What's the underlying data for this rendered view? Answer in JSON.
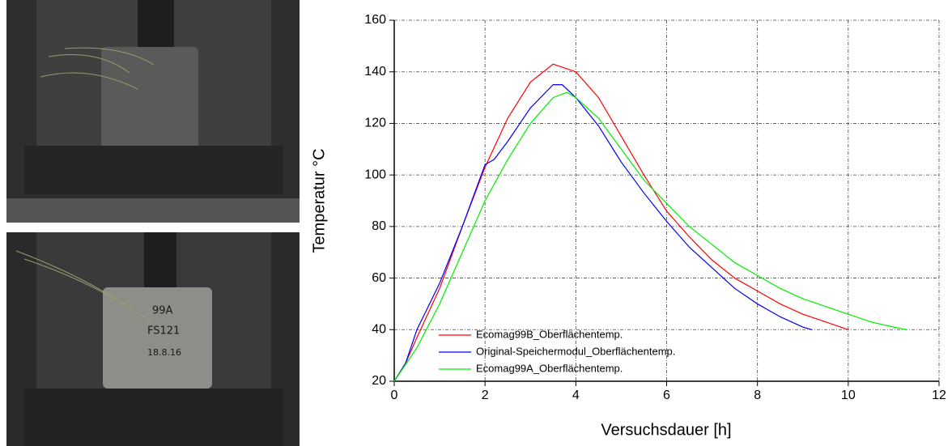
{
  "photo_labels": [
    "99A",
    "FS121",
    "18.8.16"
  ],
  "chart_data": {
    "type": "line",
    "x_label": "Versuchsdauer [h]",
    "y_label": "Temperatur °C",
    "xlim": [
      0,
      12
    ],
    "xticks": [
      0,
      2,
      4,
      6,
      8,
      10,
      12
    ],
    "ylim": [
      20,
      160
    ],
    "yticks": [
      20,
      40,
      60,
      80,
      100,
      120,
      140,
      160
    ],
    "grid": true,
    "legend": "lower left",
    "series": [
      {
        "name": "Ecomag99B_Oberflächentemp.",
        "color": "#ff0000",
        "x": [
          0,
          0.25,
          0.5,
          1,
          1.5,
          2,
          2.5,
          3,
          3.5,
          4,
          4.5,
          5,
          5.5,
          6,
          6.5,
          7,
          7.5,
          8,
          8.5,
          9,
          9.5,
          10
        ],
        "values": [
          20,
          27,
          37,
          56,
          80,
          103,
          122,
          136,
          143,
          140,
          130,
          115,
          100,
          86,
          76,
          67,
          60,
          55,
          50,
          46,
          43,
          40
        ]
      },
      {
        "name": "Original-Speichermodul_Oberflächentemp.",
        "color": "#0000ff",
        "x": [
          0,
          0.25,
          0.5,
          1,
          1.5,
          2,
          2.2,
          2.5,
          3,
          3.5,
          3.7,
          4,
          4.5,
          5,
          5.5,
          6,
          6.5,
          7,
          7.5,
          8,
          8.5,
          9,
          9.2
        ],
        "values": [
          20,
          27,
          40,
          58,
          80,
          104,
          106,
          113,
          126,
          135,
          135,
          130,
          119,
          105,
          93,
          82,
          72,
          64,
          56,
          50,
          45,
          41,
          40
        ]
      },
      {
        "name": "Ecomag99A_Oberflächentemp.",
        "color": "#00ee00",
        "x": [
          0,
          0.5,
          1,
          1.5,
          2,
          2.5,
          3,
          3.5,
          3.8,
          4,
          4.5,
          5,
          5.5,
          6,
          6.5,
          7,
          7.5,
          8,
          8.5,
          9,
          9.5,
          10,
          10.5,
          11,
          11.3
        ],
        "values": [
          20,
          33,
          50,
          70,
          90,
          106,
          120,
          130,
          132,
          130,
          122,
          110,
          98,
          89,
          80,
          73,
          66,
          61,
          56,
          52,
          49,
          46,
          43,
          41,
          40
        ]
      }
    ]
  }
}
